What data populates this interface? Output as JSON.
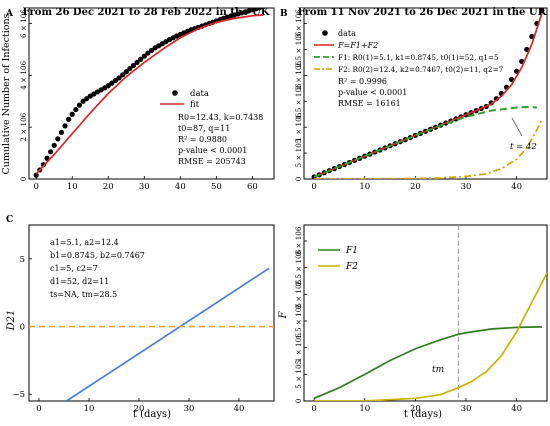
{
  "chart_data": [
    {
      "panel": "A",
      "type": "scatter",
      "title": "From 26 Dec 2021 to 28 Feb 2022 in the UK",
      "xlabel": "",
      "ylabel": "Cumulative Number of Infections",
      "xlim": [
        -2,
        66
      ],
      "ylim": [
        0,
        6.6
      ],
      "x_ticks": [
        "0",
        "10",
        "20",
        "30",
        "40",
        "50",
        "60"
      ],
      "y_ticks": [
        "0",
        "2 × 10^6",
        "4 × 10^6",
        "6 × 10^6"
      ],
      "legend": {
        "data": "data",
        "fit": "fit"
      },
      "fit_params": [
        "R0=12.43, k=0.7438",
        "t0=87, q=11",
        "R² = 0.9880",
        "p-value < 0.0001",
        "RMSE = 205743"
      ],
      "series": [
        {
          "name": "data",
          "kind": "scatter",
          "color": "#000000",
          "x": [
            0,
            1,
            2,
            3,
            4,
            5,
            6,
            7,
            8,
            9,
            10,
            11,
            12,
            13,
            14,
            15,
            16,
            17,
            18,
            19,
            20,
            21,
            22,
            23,
            24,
            25,
            26,
            27,
            28,
            29,
            30,
            31,
            32,
            33,
            34,
            35,
            36,
            37,
            38,
            39,
            40,
            41,
            42,
            43,
            44,
            45,
            46,
            47,
            48,
            49,
            50,
            51,
            52,
            53,
            54,
            55,
            56,
            57,
            58,
            59,
            60,
            61,
            62,
            63
          ],
          "y": [
            0.15,
            0.35,
            0.55,
            0.8,
            1.05,
            1.3,
            1.55,
            1.8,
            2.05,
            2.3,
            2.5,
            2.68,
            2.85,
            3.0,
            3.1,
            3.2,
            3.28,
            3.36,
            3.44,
            3.52,
            3.6,
            3.7,
            3.8,
            3.9,
            4.02,
            4.14,
            4.26,
            4.38,
            4.5,
            4.62,
            4.74,
            4.86,
            4.96,
            5.06,
            5.14,
            5.22,
            5.3,
            5.38,
            5.45,
            5.52,
            5.58,
            5.64,
            5.7,
            5.76,
            5.8,
            5.85,
            5.9,
            5.95,
            6.0,
            6.05,
            6.1,
            6.15,
            6.2,
            6.25,
            6.29,
            6.33,
            6.37,
            6.41,
            6.45,
            6.49,
            6.53,
            6.57,
            6.61,
            6.65
          ]
        },
        {
          "name": "fit",
          "kind": "line",
          "color": "#d62728",
          "x": [
            0,
            5,
            10,
            15,
            20,
            25,
            30,
            35,
            40,
            45,
            50,
            55,
            60,
            63
          ],
          "y": [
            0.2,
            0.95,
            1.75,
            2.55,
            3.3,
            3.95,
            4.5,
            5.0,
            5.45,
            5.8,
            6.05,
            6.2,
            6.3,
            6.33
          ]
        }
      ]
    },
    {
      "panel": "B",
      "type": "line",
      "title": "From 11 Nov 2021 to 26 Dec 2021 in the UK",
      "xlabel": "",
      "ylabel": "",
      "xlim": [
        -2,
        46
      ],
      "ylim": [
        0,
        3.3
      ],
      "x_ticks": [
        "0",
        "10",
        "20",
        "30",
        "40"
      ],
      "y_ticks": [
        "0",
        "5 × 10^5",
        "1 × 10^6",
        "1.5 × 10^6",
        "2 × 10^6",
        "2.5 × 10^6",
        "3 × 10^6"
      ],
      "legend": {
        "data": "data",
        "total": "F=F1+F2",
        "f1": "F1: R0(1)=5.1, k1=0.8745, t0(1)=52, q1=5",
        "f2": "F2: R0(2)=12.4, k2=0.7467, t0(2)=11, q2=7"
      },
      "fit_params": [
        "R² = 0.9996",
        "p-value < 0.0001",
        "RMSE = 16161"
      ],
      "annotation": "t = 42",
      "series": [
        {
          "name": "data",
          "kind": "scatter",
          "color": "#000000",
          "x": [
            0,
            1,
            2,
            3,
            4,
            5,
            6,
            7,
            8,
            9,
            10,
            11,
            12,
            13,
            14,
            15,
            16,
            17,
            18,
            19,
            20,
            21,
            22,
            23,
            24,
            25,
            26,
            27,
            28,
            29,
            30,
            31,
            32,
            33,
            34,
            35,
            36,
            37,
            38,
            39,
            40,
            41,
            42,
            43,
            44,
            45
          ],
          "y": [
            0.04,
            0.08,
            0.12,
            0.16,
            0.2,
            0.24,
            0.28,
            0.32,
            0.36,
            0.4,
            0.44,
            0.48,
            0.52,
            0.56,
            0.6,
            0.64,
            0.68,
            0.72,
            0.76,
            0.8,
            0.84,
            0.88,
            0.92,
            0.96,
            1.0,
            1.04,
            1.08,
            1.12,
            1.16,
            1.2,
            1.24,
            1.28,
            1.32,
            1.36,
            1.4,
            1.47,
            1.55,
            1.65,
            1.77,
            1.92,
            2.08,
            2.27,
            2.5,
            2.75,
            3.0,
            3.25
          ]
        },
        {
          "name": "F",
          "kind": "line",
          "color": "#d62728",
          "x": [
            0,
            5,
            10,
            15,
            20,
            25,
            30,
            33,
            35,
            37,
            39,
            41,
            43,
            45
          ],
          "y": [
            0.04,
            0.24,
            0.44,
            0.64,
            0.84,
            1.04,
            1.24,
            1.36,
            1.45,
            1.6,
            1.82,
            2.15,
            2.6,
            3.2
          ]
        },
        {
          "name": "F1",
          "kind": "line",
          "color": "#2ca02c",
          "x": [
            0,
            5,
            10,
            15,
            20,
            25,
            30,
            35,
            40,
            42,
            44
          ],
          "y": [
            0.04,
            0.24,
            0.44,
            0.64,
            0.84,
            1.03,
            1.2,
            1.32,
            1.38,
            1.39,
            1.38
          ]
        },
        {
          "name": "F2",
          "kind": "line",
          "color": "#d4a000",
          "x": [
            0,
            10,
            20,
            25,
            30,
            34,
            37,
            40,
            42,
            44,
            45
          ],
          "y": [
            0.0,
            0.0,
            0.01,
            0.02,
            0.05,
            0.1,
            0.2,
            0.38,
            0.6,
            0.95,
            1.15
          ]
        }
      ]
    },
    {
      "panel": "C",
      "type": "line",
      "title": "",
      "xlabel": "t (days)",
      "ylabel": "D21",
      "xlim": [
        -2,
        47
      ],
      "ylim": [
        -5.5,
        7.5
      ],
      "x_ticks": [
        "0",
        "10",
        "20",
        "30",
        "40"
      ],
      "y_ticks": [
        "−5",
        "0",
        "5"
      ],
      "params": [
        "a1=5.1, a2=12.4",
        "b1=0.8745, b2=0.7467",
        "c1=5, c2=7",
        "d1=52, d2=11",
        "ts=NA, tm=28.5"
      ],
      "series": [
        {
          "name": "D21",
          "kind": "line",
          "color": "#4a7fd4",
          "x": [
            5.5,
            46
          ],
          "y": [
            -5.5,
            4.3
          ]
        },
        {
          "name": "zero",
          "kind": "dashed",
          "color": "#f0a030",
          "x": [
            -2,
            47
          ],
          "y": [
            0,
            0
          ]
        }
      ]
    },
    {
      "panel": "D",
      "type": "line",
      "title": "",
      "xlabel": "t (days)",
      "ylabel": "F",
      "xlim": [
        -2,
        46
      ],
      "ylim": [
        0,
        3.3
      ],
      "x_ticks": [
        "0",
        "10",
        "20",
        "30",
        "40"
      ],
      "y_ticks": [
        "0",
        "5 × 10^5",
        "1 × 10^6",
        "1.5 × 10^6",
        "2 × 10^6",
        "2.5 × 10^6",
        "3 × 10^6"
      ],
      "legend": {
        "f1": "F1",
        "f2": "F2"
      },
      "annotation": "tm",
      "vline_x": 28.5,
      "series": [
        {
          "name": "F1",
          "kind": "line",
          "color": "#2e7d1e",
          "x": [
            0,
            5,
            10,
            15,
            20,
            25,
            28.5,
            30,
            35,
            40,
            45
          ],
          "y": [
            0.05,
            0.25,
            0.5,
            0.76,
            0.98,
            1.15,
            1.25,
            1.28,
            1.35,
            1.38,
            1.39
          ]
        },
        {
          "name": "F2",
          "kind": "line",
          "color": "#c8b400",
          "x": [
            0,
            10,
            20,
            25,
            28.5,
            31,
            34,
            37,
            40,
            43,
            46
          ],
          "y": [
            0.0,
            0.0,
            0.05,
            0.12,
            0.25,
            0.36,
            0.55,
            0.85,
            1.3,
            1.85,
            2.4
          ]
        }
      ]
    }
  ]
}
